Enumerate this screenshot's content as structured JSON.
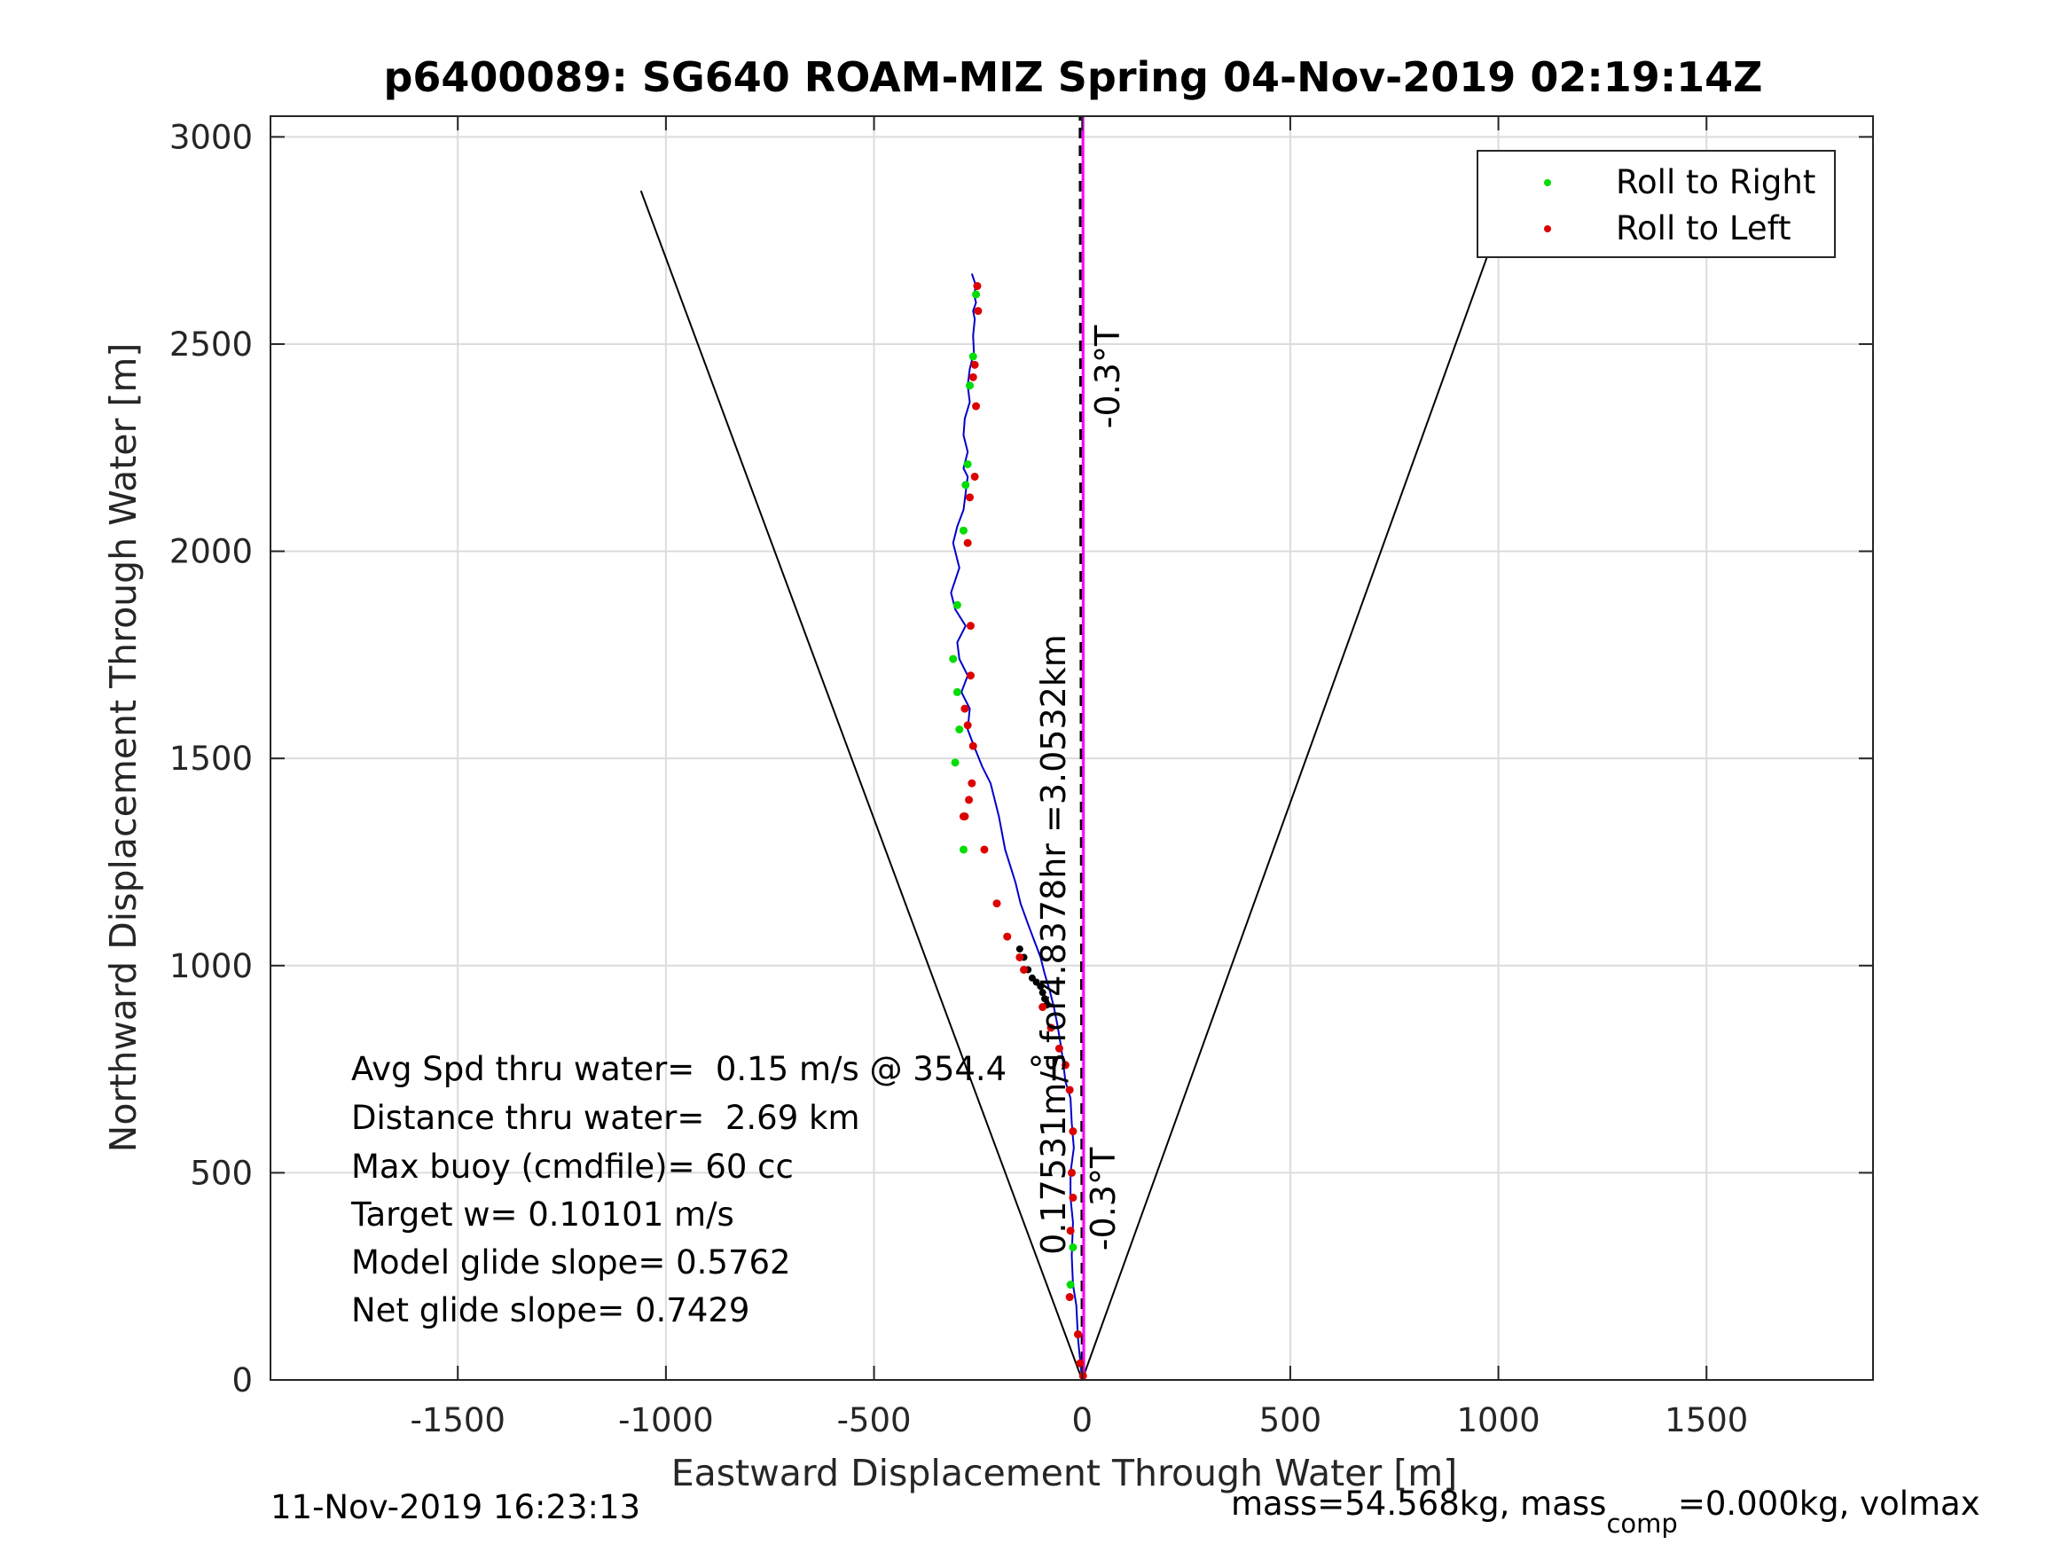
{
  "chart_data": {
    "type": "line",
    "title": "p6400089: SG640 ROAM-MIZ Spring 04-Nov-2019 02:19:14Z",
    "xlabel": "Eastward Displacement Through Water [m]",
    "ylabel": "Northward Displacement Through Water [m]",
    "xlim": [
      -1950,
      1900
    ],
    "ylim": [
      0,
      3050
    ],
    "xticks": [
      -1500,
      -1000,
      -500,
      0,
      500,
      1000,
      1500
    ],
    "yticks": [
      0,
      500,
      1000,
      1500,
      2000,
      2500,
      3000
    ],
    "grid": true,
    "legend": {
      "position": "top-right",
      "entries": [
        {
          "label": "Roll to Right",
          "color": "#00dd00"
        },
        {
          "label": "Roll to Left",
          "color": "#dd0000"
        }
      ]
    },
    "track": {
      "color": "#0000cc",
      "x": [
        0,
        -10,
        -14,
        -22,
        -25,
        -22,
        -28,
        -28,
        -20,
        -25,
        -28,
        -40,
        -50,
        -60,
        -68,
        -78,
        -90,
        -100,
        -115,
        -130,
        -148,
        -160,
        -185,
        -200,
        -220,
        -240,
        -260,
        -275,
        -270,
        -290,
        -275,
        -295,
        -300,
        -280,
        -305,
        -315,
        -295,
        -310,
        -300,
        -285,
        -280,
        -275,
        -285,
        -275,
        -285,
        -282,
        -270,
        -275,
        -270,
        -260,
        -262,
        -258,
        -262,
        -255,
        -260,
        -255,
        -265
      ],
      "y": [
        0,
        100,
        180,
        230,
        300,
        380,
        440,
        500,
        560,
        620,
        680,
        720,
        800,
        860,
        900,
        940,
        980,
        1020,
        1060,
        1100,
        1150,
        1200,
        1280,
        1360,
        1440,
        1480,
        1530,
        1570,
        1620,
        1660,
        1700,
        1740,
        1780,
        1820,
        1860,
        1900,
        1960,
        2020,
        2060,
        2100,
        2140,
        2180,
        2200,
        2240,
        2280,
        2320,
        2360,
        2400,
        2440,
        2480,
        2520,
        2560,
        2580,
        2600,
        2620,
        2640,
        2670
      ]
    },
    "roll_right_points": {
      "color": "#00dd00",
      "x": [
        -255,
        -262,
        -270,
        -275,
        -280,
        -285,
        -300,
        -310,
        -300,
        -295,
        -305,
        -282,
        -285,
        -22,
        -28,
        -10
      ],
      "y": [
        2620,
        2470,
        2400,
        2210,
        2160,
        2050,
        1870,
        1740,
        1660,
        1570,
        1490,
        1360,
        1280,
        320,
        230,
        110
      ]
    },
    "roll_left_points": {
      "color": "#dd0000",
      "x": [
        -252,
        -250,
        -258,
        -262,
        -255,
        -258,
        -270,
        -275,
        -268,
        -268,
        -282,
        -275,
        -282,
        -262,
        -265,
        -272,
        -285,
        -235,
        -205,
        -180,
        -150,
        -140,
        -95,
        -75,
        -55,
        -40,
        -30,
        -22,
        -25,
        -22,
        -28,
        -30,
        -10,
        -5,
        2
      ],
      "y": [
        2640,
        2580,
        2450,
        2420,
        2350,
        2180,
        2130,
        2020,
        1820,
        1700,
        1620,
        1580,
        1360,
        1530,
        1440,
        1400,
        1360,
        1280,
        1150,
        1070,
        1020,
        990,
        900,
        850,
        800,
        760,
        700,
        600,
        500,
        440,
        360,
        200,
        110,
        40,
        10
      ]
    },
    "segment_points": {
      "color": "#000000",
      "x": [
        -150,
        -140,
        -130,
        -120,
        -110,
        -100,
        -95,
        -90,
        -85
      ],
      "y": [
        1040,
        1020,
        990,
        970,
        960,
        950,
        935,
        920,
        905
      ]
    },
    "envelope_lines": {
      "color": "#000000",
      "left": {
        "x": [
          -1060,
          0
        ],
        "y": [
          2870,
          0
        ]
      },
      "right": {
        "x": [
          1030,
          0
        ],
        "y": [
          2870,
          0
        ]
      }
    },
    "heading_lines": [
      {
        "color": "#000000",
        "dash": true,
        "x": [
          0,
          -5
        ],
        "y": [
          0,
          3050
        ]
      },
      {
        "color": "#ff00ff",
        "dash": false,
        "x": [
          4,
          2
        ],
        "y": [
          0,
          3050
        ]
      }
    ],
    "annotations": {
      "heading_top": "-0.3°T",
      "heading_bottom": "-0.3°T",
      "speed_line": "0.17531m/s for4.8378hr =3.0532km"
    },
    "stats": [
      "Avg Spd thru water=  0.15 m/s @ 354.4  °T",
      "Distance thru water=  2.69 km",
      "Max buoy (cmdfile)= 60 cc",
      "Target w= 0.10101 m/s",
      "Model glide slope= 0.5762",
      "Net glide slope= 0.7429"
    ],
    "footer": {
      "timestamp": "11-Nov-2019 16:23:13",
      "mass_prefix": "mass=54.568kg, mass",
      "mass_sub": "comp",
      "mass_suffix": "=0.000kg, volmax"
    }
  }
}
